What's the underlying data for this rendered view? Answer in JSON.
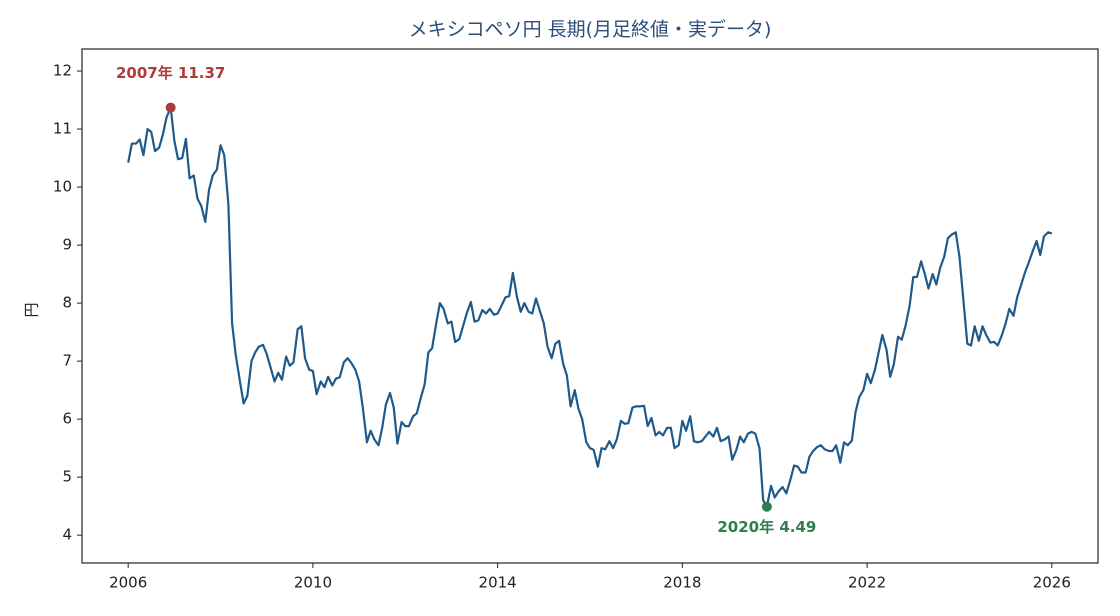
{
  "chart_data": {
    "type": "line",
    "title": "メキシコペソ円 長期(月足終値・実データ)",
    "y_label": "円",
    "xlim": [
      2005,
      2027
    ],
    "xticks": [
      2006,
      2010,
      2014,
      2018,
      2022,
      2026
    ],
    "ylim": [
      3.52,
      12.38
    ],
    "yticks": [
      4,
      5,
      6,
      7,
      8,
      9,
      10,
      11,
      12
    ],
    "x": [
      2006,
      2006.08,
      2006.17,
      2006.25,
      2006.33,
      2006.42,
      2006.5,
      2006.58,
      2006.67,
      2006.75,
      2006.83,
      2006.92,
      2007,
      2007.08,
      2007.17,
      2007.25,
      2007.33,
      2007.42,
      2007.5,
      2007.58,
      2007.67,
      2007.75,
      2007.83,
      2007.92,
      2008,
      2008.08,
      2008.17,
      2008.25,
      2008.33,
      2008.42,
      2008.5,
      2008.58,
      2008.67,
      2008.75,
      2008.83,
      2008.92,
      2009,
      2009.08,
      2009.17,
      2009.25,
      2009.33,
      2009.42,
      2009.5,
      2009.58,
      2009.67,
      2009.75,
      2009.83,
      2009.92,
      2010,
      2010.08,
      2010.17,
      2010.25,
      2010.33,
      2010.42,
      2010.5,
      2010.58,
      2010.67,
      2010.75,
      2010.83,
      2010.92,
      2011,
      2011.08,
      2011.17,
      2011.25,
      2011.33,
      2011.42,
      2011.5,
      2011.58,
      2011.67,
      2011.75,
      2011.83,
      2011.92,
      2012,
      2012.08,
      2012.17,
      2012.25,
      2012.33,
      2012.42,
      2012.5,
      2012.58,
      2012.67,
      2012.75,
      2012.83,
      2012.92,
      2013,
      2013.08,
      2013.17,
      2013.25,
      2013.33,
      2013.42,
      2013.5,
      2013.58,
      2013.67,
      2013.75,
      2013.83,
      2013.92,
      2014,
      2014.08,
      2014.17,
      2014.25,
      2014.33,
      2014.42,
      2014.5,
      2014.58,
      2014.67,
      2014.75,
      2014.83,
      2014.92,
      2015,
      2015.08,
      2015.17,
      2015.25,
      2015.33,
      2015.42,
      2015.5,
      2015.58,
      2015.67,
      2015.75,
      2015.83,
      2015.92,
      2016,
      2016.08,
      2016.17,
      2016.25,
      2016.33,
      2016.42,
      2016.5,
      2016.58,
      2016.67,
      2016.75,
      2016.83,
      2016.92,
      2017,
      2017.08,
      2017.17,
      2017.25,
      2017.33,
      2017.42,
      2017.5,
      2017.58,
      2017.67,
      2017.75,
      2017.83,
      2017.92,
      2018,
      2018.08,
      2018.17,
      2018.25,
      2018.33,
      2018.42,
      2018.5,
      2018.58,
      2018.67,
      2018.75,
      2018.83,
      2018.92,
      2019,
      2019.08,
      2019.17,
      2019.25,
      2019.33,
      2019.42,
      2019.5,
      2019.58,
      2019.67,
      2019.75,
      2019.83,
      2019.92,
      2020,
      2020.08,
      2020.17,
      2020.25,
      2020.33,
      2020.42,
      2020.5,
      2020.58,
      2020.67,
      2020.75,
      2020.83,
      2020.92,
      2021,
      2021.08,
      2021.17,
      2021.25,
      2021.33,
      2021.42,
      2021.5,
      2021.58,
      2021.67,
      2021.75,
      2021.83,
      2021.92,
      2022,
      2022.08,
      2022.17,
      2022.25,
      2022.33,
      2022.42,
      2022.5,
      2022.58,
      2022.67,
      2022.75,
      2022.83,
      2022.92,
      2023,
      2023.08,
      2023.17,
      2023.25,
      2023.33,
      2023.42,
      2023.5,
      2023.58,
      2023.67,
      2023.75,
      2023.83,
      2023.92,
      2024,
      2024.08,
      2024.17,
      2024.25,
      2024.33,
      2024.42,
      2024.5,
      2024.58,
      2024.67,
      2024.75,
      2024.83,
      2024.92,
      2025,
      2025.08,
      2025.17,
      2025.25,
      2025.33,
      2025.42,
      2025.5,
      2025.58,
      2025.67,
      2025.75,
      2025.83,
      2025.92,
      2026
    ],
    "series": [
      {
        "name": "メキシコペソ円",
        "color": "#1f5a8a",
        "values": [
          10.42,
          10.75,
          10.75,
          10.82,
          10.55,
          11.0,
          10.95,
          10.62,
          10.68,
          10.9,
          11.2,
          11.37,
          10.8,
          10.48,
          10.5,
          10.83,
          10.15,
          10.2,
          9.8,
          9.68,
          9.4,
          9.95,
          10.2,
          10.3,
          10.72,
          10.55,
          9.7,
          7.65,
          7.1,
          6.65,
          6.27,
          6.4,
          7.0,
          7.15,
          7.25,
          7.28,
          7.12,
          6.9,
          6.65,
          6.8,
          6.68,
          7.08,
          6.92,
          6.98,
          7.55,
          7.6,
          7.05,
          6.85,
          6.83,
          6.43,
          6.65,
          6.55,
          6.73,
          6.58,
          6.7,
          6.72,
          6.98,
          7.05,
          6.97,
          6.85,
          6.65,
          6.2,
          5.6,
          5.8,
          5.65,
          5.55,
          5.85,
          6.25,
          6.45,
          6.2,
          5.58,
          5.95,
          5.88,
          5.88,
          6.05,
          6.1,
          6.35,
          6.6,
          7.15,
          7.22,
          7.65,
          8.0,
          7.9,
          7.65,
          7.68,
          7.33,
          7.38,
          7.6,
          7.82,
          8.02,
          7.68,
          7.7,
          7.88,
          7.82,
          7.9,
          7.8,
          7.82,
          7.95,
          8.1,
          8.12,
          8.52,
          8.1,
          7.85,
          8.0,
          7.85,
          7.82,
          8.08,
          7.85,
          7.65,
          7.25,
          7.05,
          7.3,
          7.35,
          6.95,
          6.75,
          6.22,
          6.5,
          6.18,
          6.0,
          5.6,
          5.5,
          5.47,
          5.18,
          5.5,
          5.48,
          5.62,
          5.5,
          5.65,
          5.97,
          5.92,
          5.93,
          6.2,
          6.22,
          6.22,
          6.23,
          5.88,
          6.02,
          5.72,
          5.78,
          5.72,
          5.85,
          5.85,
          5.5,
          5.55,
          5.97,
          5.8,
          6.05,
          5.62,
          5.6,
          5.62,
          5.7,
          5.78,
          5.7,
          5.85,
          5.62,
          5.65,
          5.7,
          5.3,
          5.47,
          5.7,
          5.6,
          5.75,
          5.78,
          5.75,
          5.5,
          4.6,
          4.49,
          4.85,
          4.65,
          4.75,
          4.83,
          4.72,
          4.93,
          5.2,
          5.18,
          5.08,
          5.08,
          5.35,
          5.45,
          5.52,
          5.55,
          5.48,
          5.45,
          5.45,
          5.55,
          5.25,
          5.6,
          5.55,
          5.63,
          6.12,
          6.38,
          6.5,
          6.78,
          6.62,
          6.85,
          7.15,
          7.45,
          7.2,
          6.73,
          6.95,
          7.42,
          7.37,
          7.6,
          7.95,
          8.45,
          8.45,
          8.72,
          8.5,
          8.25,
          8.5,
          8.32,
          8.6,
          8.8,
          9.12,
          9.18,
          9.22,
          8.8,
          8.1,
          7.3,
          7.27,
          7.6,
          7.35,
          7.6,
          7.45,
          7.32,
          7.33,
          7.27,
          7.45,
          7.65,
          7.9,
          7.78,
          8.1,
          8.3,
          8.53,
          8.7,
          8.88,
          9.07,
          8.83,
          9.15,
          9.22,
          9.2
        ]
      }
    ],
    "annotations": [
      {
        "text": "2007年 11.37",
        "x": 2006.92,
        "y": 11.37,
        "color": "#b03a3a"
      },
      {
        "text": "2020年 4.49",
        "x": 2019.83,
        "y": 4.49,
        "color": "#2e7d4f"
      }
    ]
  }
}
